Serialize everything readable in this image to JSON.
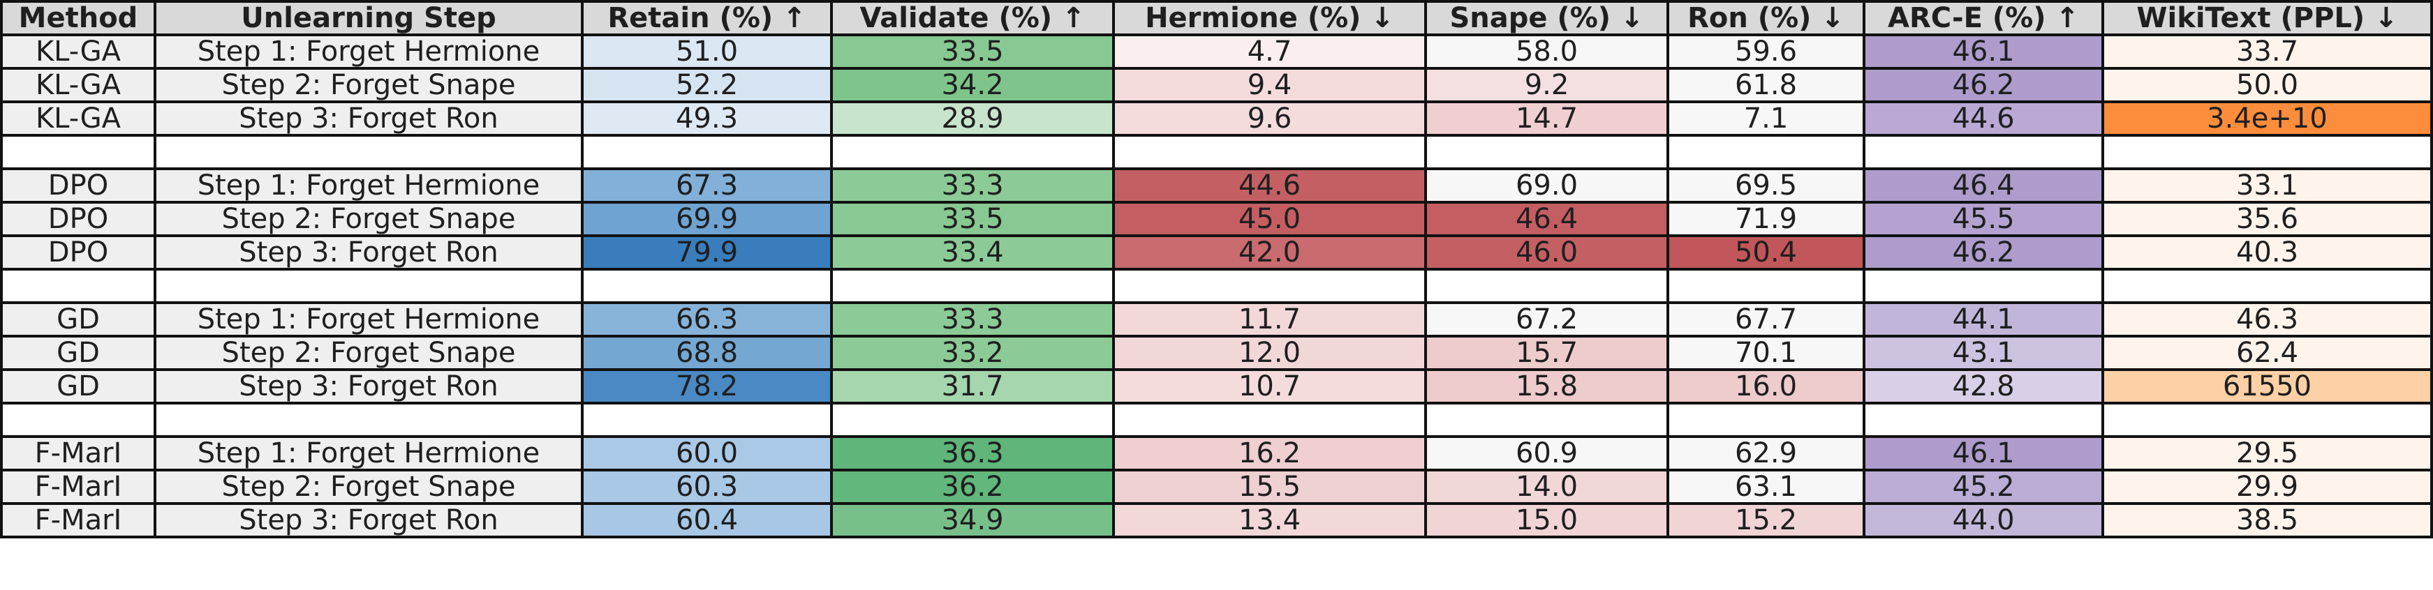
{
  "chart_data": {
    "type": "table",
    "columns": [
      "Method",
      "Unlearning Step",
      "Retain (%) ↑",
      "Validate (%) ↑",
      "Hermione (%) ↓",
      "Snape (%) ↓",
      "Ron (%) ↓",
      "ARC-E (%) ↑",
      "WikiText (PPL) ↓"
    ],
    "groups": [
      {
        "method": "KL-GA",
        "rows": [
          {
            "step": "Step 1: Forget Hermione",
            "values": [
              "51.0",
              "33.5",
              "4.7",
              "58.0",
              "59.6",
              "46.1",
              "33.7"
            ]
          },
          {
            "step": "Step 2: Forget Snape",
            "values": [
              "52.2",
              "34.2",
              "9.4",
              "9.2",
              "61.8",
              "46.2",
              "50.0"
            ]
          },
          {
            "step": "Step 3: Forget Ron",
            "values": [
              "49.3",
              "28.9",
              "9.6",
              "14.7",
              "7.1",
              "44.6",
              "3.4e+10"
            ]
          }
        ]
      },
      {
        "method": "DPO",
        "rows": [
          {
            "step": "Step 1: Forget Hermione",
            "values": [
              "67.3",
              "33.3",
              "44.6",
              "69.0",
              "69.5",
              "46.4",
              "33.1"
            ]
          },
          {
            "step": "Step 2: Forget Snape",
            "values": [
              "69.9",
              "33.5",
              "45.0",
              "46.4",
              "71.9",
              "45.5",
              "35.6"
            ]
          },
          {
            "step": "Step 3: Forget Ron",
            "values": [
              "79.9",
              "33.4",
              "42.0",
              "46.0",
              "50.4",
              "46.2",
              "40.3"
            ]
          }
        ]
      },
      {
        "method": "GD",
        "rows": [
          {
            "step": "Step 1: Forget Hermione",
            "values": [
              "66.3",
              "33.3",
              "11.7",
              "67.2",
              "67.7",
              "44.1",
              "46.3"
            ]
          },
          {
            "step": "Step 2: Forget Snape",
            "values": [
              "68.8",
              "33.2",
              "12.0",
              "15.7",
              "70.1",
              "43.1",
              "62.4"
            ]
          },
          {
            "step": "Step 3: Forget Ron",
            "values": [
              "78.2",
              "31.7",
              "10.7",
              "15.8",
              "16.0",
              "42.8",
              "61550"
            ]
          }
        ]
      },
      {
        "method": "F-MarI",
        "rows": [
          {
            "step": "Step 1: Forget Hermione",
            "values": [
              "60.0",
              "36.3",
              "16.2",
              "60.9",
              "62.9",
              "46.1",
              "29.5"
            ]
          },
          {
            "step": "Step 2: Forget Snape",
            "values": [
              "60.3",
              "36.2",
              "15.5",
              "14.0",
              "63.1",
              "45.2",
              "29.9"
            ]
          },
          {
            "step": "Step 3: Forget Ron",
            "values": [
              "60.4",
              "34.9",
              "13.4",
              "15.0",
              "15.2",
              "44.0",
              "38.5"
            ]
          }
        ]
      }
    ],
    "cell_colors": [
      [
        [
          "#dbe7f3",
          "#87c893",
          "#fbeeee",
          "#f7f7f7",
          "#f7f7f7",
          "#ad9ccc",
          "#fff4ec"
        ],
        [
          "#d6e4f2",
          "#7ec48b",
          "#f4dcdd",
          "#f4e0e1",
          "#f7f7f7",
          "#ad9ccc",
          "#fff4ec"
        ],
        [
          "#dfe9f4",
          "#c8e4cd",
          "#f4dcdd",
          "#efcfd1",
          "#f7f7f7",
          "#b9a9d4",
          "#fc8d3c"
        ]
      ],
      [
        [
          "#82b0d8",
          "#8ccb97",
          "#c46064",
          "#f7f7f7",
          "#f7f7f7",
          "#ad9ccc",
          "#fff4ec"
        ],
        [
          "#6fa3d1",
          "#87c893",
          "#c45e62",
          "#c45e62",
          "#f7f7f7",
          "#b4a3d0",
          "#fff4ec"
        ],
        [
          "#3a7dbd",
          "#8ccb97",
          "#c96b6f",
          "#c46064",
          "#c1575b",
          "#ad9ccc",
          "#fff4ec"
        ]
      ],
      [
        [
          "#87b3d9",
          "#8ccb97",
          "#f2d8d9",
          "#f7f7f7",
          "#f7f7f7",
          "#c2b5da",
          "#fff4ec"
        ],
        [
          "#75a7d3",
          "#8ccb97",
          "#f2d7d8",
          "#eecbcd",
          "#f7f7f7",
          "#cdc2e0",
          "#fff4ec"
        ],
        [
          "#4a89c3",
          "#a5d6ae",
          "#f4dcdd",
          "#eecbcd",
          "#eecbcd",
          "#d9d0e8",
          "#fdd0a6"
        ]
      ],
      [
        [
          "#aac9e6",
          "#5fb57a",
          "#efcfd1",
          "#f7f7f7",
          "#f7f7f7",
          "#ad9ccc",
          "#fff4ec"
        ],
        [
          "#a8c8e5",
          "#62b77c",
          "#efd1d3",
          "#f2d7d8",
          "#f7f7f7",
          "#bbadd6",
          "#fff4ec"
        ],
        [
          "#a7c7e5",
          "#78c08a",
          "#f2d8d9",
          "#f1d4d6",
          "#f1d4d6",
          "#c3b7da",
          "#fff4ec"
        ]
      ]
    ],
    "spacer_color": "#ffffff",
    "header_color": "#d9d9d9",
    "label_color": "#efefef"
  }
}
